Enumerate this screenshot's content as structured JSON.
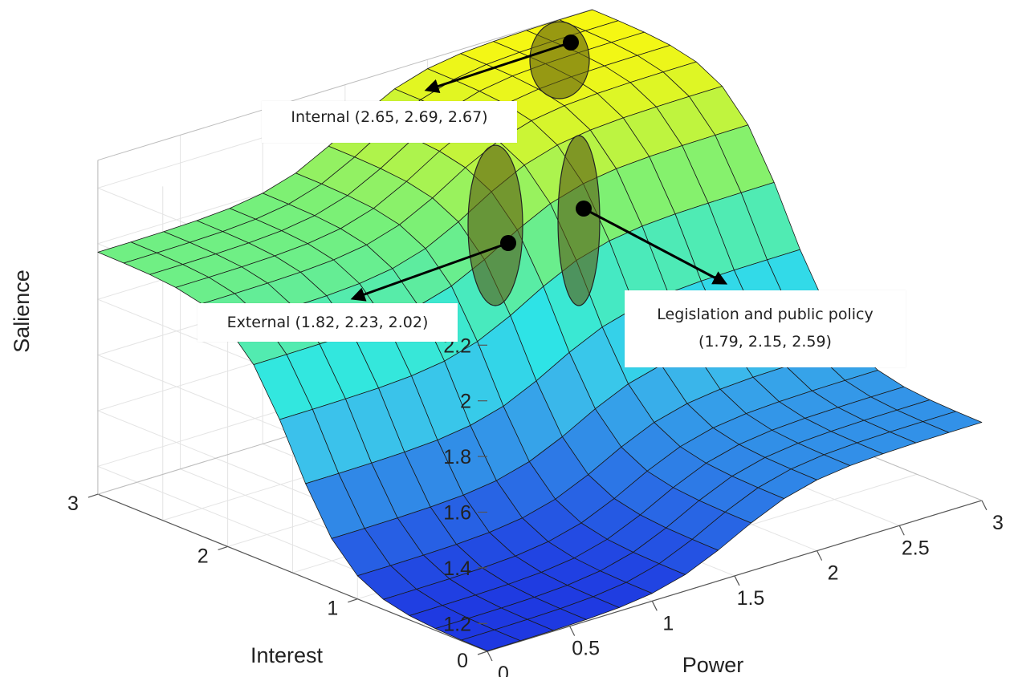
{
  "chart_data": {
    "type": "surface",
    "title": "",
    "xlabel": "Power",
    "ylabel": "Interest",
    "zlabel": "Salience",
    "xlim": [
      0,
      3
    ],
    "ylim": [
      0,
      3
    ],
    "zlim": [
      1.1,
      2.3
    ],
    "x_ticks": [
      "0",
      "0.5",
      "1",
      "1.5",
      "2",
      "2.5",
      "3"
    ],
    "y_ticks": [
      "0",
      "1",
      "2",
      "3"
    ],
    "z_ticks": [
      "1.2",
      "1.4",
      "1.6",
      "1.8",
      "2",
      "2.2"
    ],
    "grid": true,
    "colormap": "parula",
    "surface_levels": {
      "min_salience": 1.1,
      "max_salience_plateau": 2.3,
      "high_interest_low_power_plateau": 1.97,
      "high_power_low_interest_plateau": 1.38
    },
    "annotations": [
      {
        "label": "Internal (2.65, 2.69, 2.67)",
        "power": 2.65,
        "interest": 2.69,
        "salience": 2.67
      },
      {
        "label": "External (1.82, 2.23, 2.02)",
        "power": 1.82,
        "interest": 2.23,
        "salience": 2.02
      },
      {
        "label": "Legislation and public policy (1.79, 2.15, 2.59)",
        "label_lines": [
          "Legislation and public policy",
          "(1.79, 2.15, 2.59)"
        ],
        "power": 1.79,
        "interest": 2.15,
        "salience": 2.59
      }
    ]
  },
  "colors": {
    "high": "#f7f711",
    "mid": "#2de6e6",
    "low": "#1f3fe0",
    "marker": "#000000",
    "ellipse_fill": "#5a5a10"
  }
}
